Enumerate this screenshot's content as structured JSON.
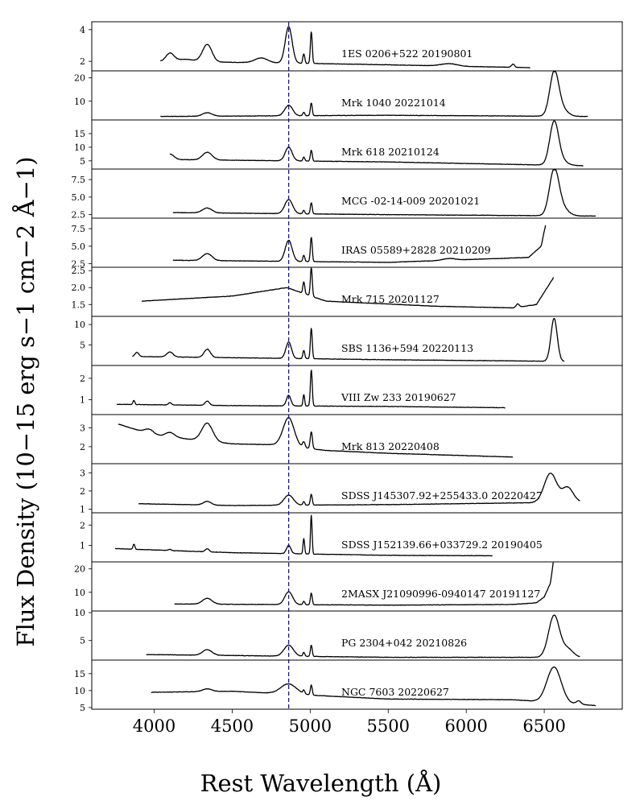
{
  "chart_data": {
    "type": "line",
    "xlabel": "Rest Wavelength (Å)",
    "ylabel": "Flux Density (10−15 erg s−1 cm−2 Å−1)",
    "xlim": [
      3600,
      7000
    ],
    "xticks": [
      4000,
      4500,
      5000,
      5500,
      6000,
      6500
    ],
    "xtick_labels": [
      "4000",
      "4500",
      "5000",
      "5500",
      "6000",
      "6500"
    ],
    "reference_line": {
      "x": 4862,
      "style": "dashed",
      "color": "#1010c8"
    },
    "colors": {
      "spectrum": "#000000",
      "reference": "#1010c8"
    },
    "panels": [
      {
        "label": "1ES 0206+522 20190801",
        "ylim": [
          1.4,
          4.5
        ],
        "yticks": [
          2,
          4
        ],
        "ytick_labels": [
          "2",
          "4"
        ],
        "range": [
          4040,
          6410
        ],
        "base": [
          [
            4040,
            2.0
          ],
          [
            4800,
            1.9
          ],
          [
            5400,
            1.8
          ],
          [
            6410,
            1.6
          ]
        ],
        "lines": [
          [
            4101,
            0.5,
            25
          ],
          [
            4200,
            0.15,
            60
          ],
          [
            4340,
            1.1,
            30
          ],
          [
            4686,
            0.3,
            40
          ],
          [
            4862,
            2.3,
            22
          ],
          [
            4959,
            0.6,
            6
          ],
          [
            5007,
            2.0,
            6
          ],
          [
            5890,
            0.15,
            50
          ],
          [
            6300,
            0.2,
            10
          ]
        ]
      },
      {
        "label": "Mrk 1040 20221014",
        "ylim": [
          2,
          23
        ],
        "yticks": [
          10,
          20
        ],
        "ytick_labels": [
          "10",
          "20"
        ],
        "range": [
          4040,
          6780
        ],
        "base": [
          [
            4040,
            3.5
          ],
          [
            5500,
            4.0
          ],
          [
            6780,
            3.5
          ]
        ],
        "lines": [
          [
            4340,
            1.5,
            30
          ],
          [
            4862,
            4.5,
            25
          ],
          [
            4959,
            1.5,
            6
          ],
          [
            5007,
            5.5,
            6
          ],
          [
            6563,
            17,
            28
          ],
          [
            6600,
            4,
            40
          ]
        ]
      },
      {
        "label": "Mrk 618 20210124",
        "ylim": [
          2,
          20
        ],
        "yticks": [
          5,
          10,
          15
        ],
        "ytick_labels": [
          "5",
          "10",
          "15"
        ],
        "range": [
          4100,
          6750
        ],
        "base": [
          [
            4100,
            5.5
          ],
          [
            5500,
            4.6
          ],
          [
            6750,
            3.2
          ]
        ],
        "lines": [
          [
            4101,
            2.0,
            25
          ],
          [
            4340,
            2.8,
            30
          ],
          [
            4862,
            5.0,
            22
          ],
          [
            4959,
            1.5,
            6
          ],
          [
            5007,
            4.0,
            6
          ],
          [
            6563,
            15,
            28
          ],
          [
            6600,
            2,
            40
          ]
        ]
      },
      {
        "label": "MCG -02-14-009 20201021",
        "ylim": [
          2.0,
          9.0
        ],
        "yticks": [
          2.5,
          5.0,
          7.5
        ],
        "ytick_labels": [
          "2.5",
          "5.0",
          "7.5"
        ],
        "range": [
          4120,
          6830
        ],
        "base": [
          [
            4120,
            2.8
          ],
          [
            5500,
            2.5
          ],
          [
            6830,
            2.3
          ]
        ],
        "lines": [
          [
            4340,
            0.7,
            30
          ],
          [
            4862,
            2.0,
            25
          ],
          [
            4959,
            0.5,
            6
          ],
          [
            5007,
            1.6,
            6
          ],
          [
            6563,
            6.2,
            30
          ],
          [
            6610,
            1.2,
            40
          ]
        ]
      },
      {
        "label": "IRAS 05589+2828 20210209",
        "ylim": [
          2.0,
          9.0
        ],
        "yticks": [
          2.5,
          5.0,
          7.5
        ],
        "ytick_labels": [
          "2.5",
          "5.0",
          "7.5"
        ],
        "range": [
          4120,
          6510
        ],
        "base": [
          [
            4120,
            3.0
          ],
          [
            5500,
            2.7
          ],
          [
            6400,
            3.4
          ],
          [
            6480,
            5.0
          ],
          [
            6510,
            8.2
          ]
        ],
        "lines": [
          [
            4340,
            1.0,
            30
          ],
          [
            4862,
            3.0,
            22
          ],
          [
            4959,
            0.9,
            6
          ],
          [
            5007,
            3.5,
            6
          ],
          [
            5890,
            0.25,
            40
          ]
        ]
      },
      {
        "label": "Mrk 715 20201127",
        "ylim": [
          1.15,
          2.6
        ],
        "yticks": [
          1.5,
          2.0,
          2.5
        ],
        "ytick_labels": [
          "1.5",
          "2.0",
          "2.5"
        ],
        "range": [
          3920,
          6560
        ],
        "base": [
          [
            3920,
            1.6
          ],
          [
            4500,
            1.75
          ],
          [
            4850,
            2.0
          ],
          [
            5100,
            1.6
          ],
          [
            5800,
            1.45
          ],
          [
            6300,
            1.4
          ],
          [
            6450,
            1.5
          ],
          [
            6560,
            2.3
          ]
        ],
        "lines": [
          [
            4959,
            0.35,
            6
          ],
          [
            5007,
            0.85,
            6
          ],
          [
            6330,
            0.1,
            10
          ]
        ]
      },
      {
        "label": "SBS 1136+594 20220113",
        "ylim": [
          0,
          12
        ],
        "yticks": [
          5,
          10
        ],
        "ytick_labels": [
          "5",
          "10"
        ],
        "range": [
          3860,
          6630
        ],
        "base": [
          [
            3860,
            2.2
          ],
          [
            4500,
            1.9
          ],
          [
            5500,
            1.4
          ],
          [
            6630,
            1.0
          ]
        ],
        "lines": [
          [
            3889,
            1.0,
            12
          ],
          [
            4101,
            1.2,
            20
          ],
          [
            4340,
            2.0,
            20
          ],
          [
            4862,
            4.0,
            18
          ],
          [
            4959,
            2.0,
            6
          ],
          [
            5007,
            7.5,
            6
          ],
          [
            6563,
            10.5,
            20
          ]
        ]
      },
      {
        "label": "VIII Zw 233 20190627",
        "ylim": [
          0.3,
          2.6
        ],
        "yticks": [
          1,
          2
        ],
        "ytick_labels": [
          "1",
          "2"
        ],
        "range": [
          3760,
          6250
        ],
        "base": [
          [
            3760,
            0.78
          ],
          [
            4500,
            0.72
          ],
          [
            5500,
            0.68
          ],
          [
            6250,
            0.62
          ]
        ],
        "lines": [
          [
            3870,
            0.2,
            6
          ],
          [
            4101,
            0.1,
            10
          ],
          [
            4340,
            0.2,
            14
          ],
          [
            4862,
            0.5,
            14
          ],
          [
            4959,
            0.55,
            5
          ],
          [
            5007,
            1.7,
            6
          ]
        ]
      },
      {
        "label": "Mrk 813 20220408",
        "ylim": [
          1.1,
          3.7
        ],
        "yticks": [
          2,
          3
        ],
        "ytick_labels": [
          "2",
          "3"
        ],
        "range": [
          3770,
          6300
        ],
        "base": [
          [
            3770,
            3.2
          ],
          [
            4000,
            2.6
          ],
          [
            4500,
            2.15
          ],
          [
            4800,
            2.1
          ],
          [
            5100,
            1.8
          ],
          [
            5500,
            1.65
          ],
          [
            6300,
            1.45
          ]
        ],
        "lines": [
          [
            3970,
            0.25,
            30
          ],
          [
            4101,
            0.25,
            30
          ],
          [
            4340,
            0.95,
            35
          ],
          [
            4862,
            1.5,
            35
          ],
          [
            4959,
            0.3,
            8
          ],
          [
            5007,
            0.9,
            7
          ]
        ]
      },
      {
        "label": "SDSS J145307.92+255433.0 20220427",
        "ylim": [
          0.8,
          3.5
        ],
        "yticks": [
          1,
          2,
          3
        ],
        "ytick_labels": [
          "1",
          "2",
          "3"
        ],
        "range": [
          3900,
          6730
        ],
        "base": [
          [
            3900,
            1.3
          ],
          [
            4500,
            1.2
          ],
          [
            5500,
            1.25
          ],
          [
            6400,
            1.35
          ],
          [
            6730,
            1.4
          ]
        ],
        "lines": [
          [
            4340,
            0.2,
            25
          ],
          [
            4862,
            0.55,
            30
          ],
          [
            4959,
            0.2,
            6
          ],
          [
            5007,
            0.6,
            6
          ],
          [
            6540,
            1.6,
            40
          ],
          [
            6650,
            0.8,
            35
          ]
        ]
      },
      {
        "label": "SDSS J152139.66+033729.2 20190405",
        "ylim": [
          0.2,
          2.6
        ],
        "yticks": [
          1,
          2
        ],
        "ytick_labels": [
          "1",
          "2"
        ],
        "range": [
          3750,
          6170
        ],
        "base": [
          [
            3750,
            0.85
          ],
          [
            4500,
            0.65
          ],
          [
            5500,
            0.52
          ],
          [
            6170,
            0.5
          ]
        ],
        "lines": [
          [
            3870,
            0.25,
            6
          ],
          [
            4101,
            0.05,
            10
          ],
          [
            4340,
            0.15,
            12
          ],
          [
            4862,
            0.4,
            14
          ],
          [
            4959,
            0.75,
            5
          ],
          [
            5007,
            1.9,
            5
          ]
        ]
      },
      {
        "label": "2MASX J21090996-0940147 20191127",
        "ylim": [
          2,
          23
        ],
        "yticks": [
          10,
          20
        ],
        "ytick_labels": [
          "10",
          "20"
        ],
        "range": [
          4130,
          6560
        ],
        "base": [
          [
            4130,
            5.0
          ],
          [
            5500,
            4.5
          ],
          [
            6300,
            4.8
          ],
          [
            6450,
            5.5
          ],
          [
            6500,
            8
          ],
          [
            6540,
            14
          ],
          [
            6560,
            24
          ]
        ],
        "lines": [
          [
            4340,
            2.5,
            30
          ],
          [
            4862,
            5.5,
            25
          ],
          [
            4959,
            1.5,
            6
          ],
          [
            5007,
            5.0,
            6
          ]
        ]
      },
      {
        "label": "PG 2304+042 20210826",
        "ylim": [
          1.5,
          10.3
        ],
        "yticks": [
          5,
          10
        ],
        "ytick_labels": [
          "5",
          "10"
        ],
        "range": [
          3950,
          6730
        ],
        "base": [
          [
            3950,
            2.5
          ],
          [
            5500,
            2.0
          ],
          [
            6730,
            2.0
          ]
        ],
        "lines": [
          [
            4340,
            1.0,
            30
          ],
          [
            4862,
            2.0,
            30
          ],
          [
            4959,
            0.7,
            6
          ],
          [
            5007,
            2.0,
            6
          ],
          [
            6563,
            7.5,
            35
          ],
          [
            6650,
            1.5,
            35
          ]
        ]
      },
      {
        "label": "NGC 7603 20220627",
        "ylim": [
          4.5,
          19
        ],
        "yticks": [
          5,
          10,
          15
        ],
        "ytick_labels": [
          "5",
          "10",
          "15"
        ],
        "range": [
          3980,
          6830
        ],
        "base": [
          [
            3980,
            9.5
          ],
          [
            4500,
            9.8
          ],
          [
            5500,
            7.5
          ],
          [
            6300,
            7.3
          ],
          [
            6830,
            5.6
          ]
        ],
        "lines": [
          [
            4340,
            0.8,
            30
          ],
          [
            4862,
            3.0,
            50
          ],
          [
            4959,
            1.0,
            6
          ],
          [
            5007,
            3.0,
            6
          ],
          [
            6563,
            10.5,
            45
          ],
          [
            6720,
            1.0,
            15
          ]
        ]
      }
    ]
  }
}
